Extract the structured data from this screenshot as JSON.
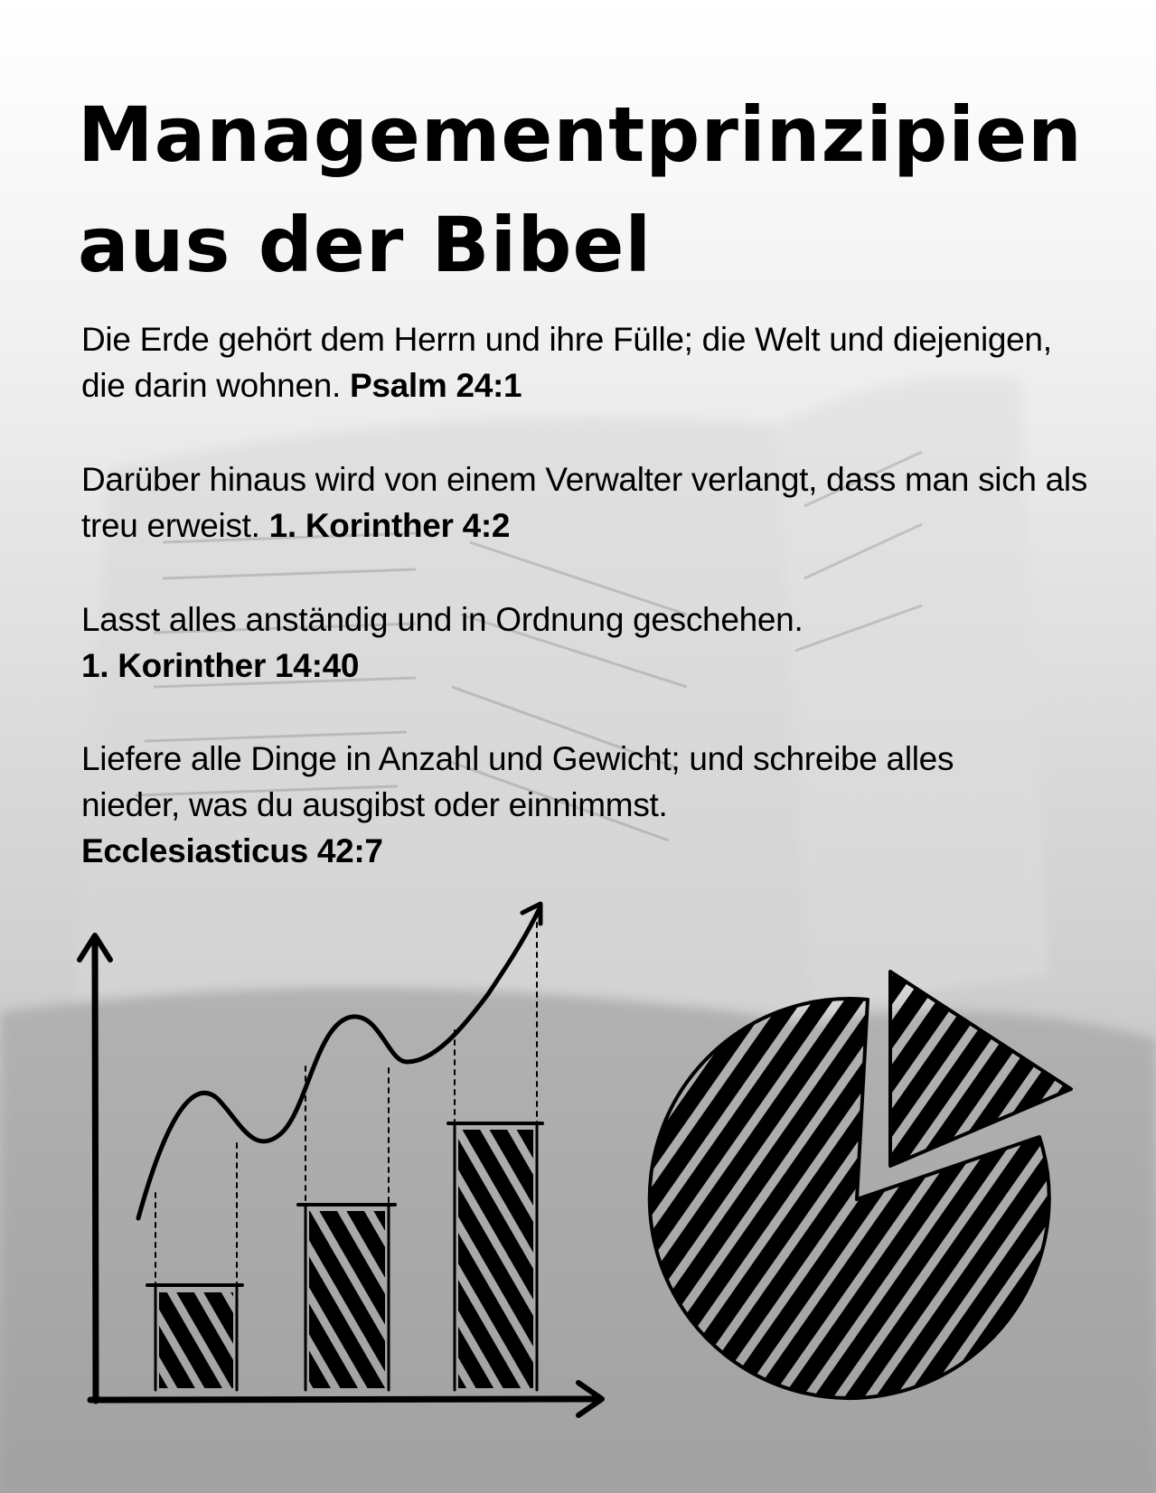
{
  "title": {
    "line1": "Managementprinzipien",
    "line2": "aus der Bibel"
  },
  "verses": [
    {
      "text": "Die Erde gehört dem Herrn und ihre Fülle; die Welt und diejenigen, die darin wohnen.",
      "reference": "Psalm 24:1"
    },
    {
      "text": "Darüber hinaus wird von einem Verwalter verlangt, dass man sich als treu erweist.",
      "reference": "1. Korinther 4:2"
    },
    {
      "text": "Lasst alles anständig und in Ordnung geschehen.",
      "reference": "1. Korinther 14:40"
    },
    {
      "text": "Liefere alle Dinge in Anzahl und Gewicht; und schreibe alles nieder, was du ausgibst oder einnimmst.",
      "reference": "Ecclesiasticus 42:7"
    }
  ],
  "illustrations": {
    "growth_chart_icon": "hand-drawn-bar-chart-with-rising-arrow",
    "pie_chart_icon": "hand-drawn-pie-chart-with-exploded-slice"
  },
  "colors": {
    "ink": "#000000",
    "background_top": "#ffffff",
    "background_bottom": "#a8a8a8"
  }
}
